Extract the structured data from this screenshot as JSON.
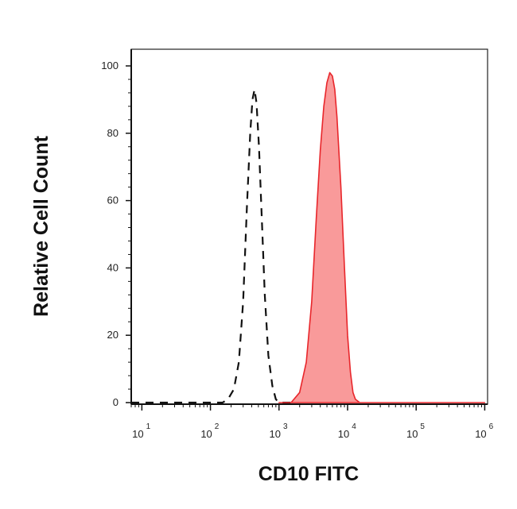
{
  "chart_data": {
    "type": "area",
    "title": "",
    "xlabel": "CD10 FITC",
    "ylabel": "Relative Cell Count",
    "x_scale": "log",
    "xlim": [
      10,
      1000000
    ],
    "ylim": [
      0,
      100
    ],
    "grid": false,
    "y_ticks": [
      "0",
      "20",
      "40",
      "60",
      "80",
      "100"
    ],
    "x_ticks": [
      {
        "base": "10",
        "exp": "1",
        "value": 10
      },
      {
        "base": "10",
        "exp": "2",
        "value": 100
      },
      {
        "base": "10",
        "exp": "3",
        "value": 1000
      },
      {
        "base": "10",
        "exp": "4",
        "value": 10000
      },
      {
        "base": "10",
        "exp": "5",
        "value": 100000
      },
      {
        "base": "10",
        "exp": "6",
        "value": 1000000
      }
    ],
    "series": [
      {
        "style": "dashed-outline",
        "color": "#111111",
        "points": [
          [
            7,
            0
          ],
          [
            150,
            0
          ],
          [
            180,
            1
          ],
          [
            220,
            4
          ],
          [
            260,
            12
          ],
          [
            300,
            30
          ],
          [
            340,
            58
          ],
          [
            380,
            80
          ],
          [
            410,
            90
          ],
          [
            440,
            93
          ],
          [
            470,
            89
          ],
          [
            510,
            76
          ],
          [
            560,
            55
          ],
          [
            620,
            32
          ],
          [
            700,
            14
          ],
          [
            800,
            5
          ],
          [
            900,
            1
          ],
          [
            1000,
            0
          ],
          [
            1500,
            0
          ]
        ]
      },
      {
        "style": "filled",
        "color": "#e8262b",
        "fill": "#f99a9a",
        "points": [
          [
            1000,
            0
          ],
          [
            1500,
            0
          ],
          [
            2000,
            3
          ],
          [
            2500,
            12
          ],
          [
            3000,
            30
          ],
          [
            3500,
            55
          ],
          [
            4000,
            75
          ],
          [
            4500,
            88
          ],
          [
            5000,
            95
          ],
          [
            5500,
            98
          ],
          [
            6000,
            97
          ],
          [
            6500,
            93
          ],
          [
            7000,
            85
          ],
          [
            8000,
            64
          ],
          [
            9000,
            40
          ],
          [
            10000,
            20
          ],
          [
            11000,
            9
          ],
          [
            12000,
            3
          ],
          [
            13000,
            1
          ],
          [
            15000,
            0
          ],
          [
            1000000,
            0
          ]
        ]
      }
    ]
  }
}
